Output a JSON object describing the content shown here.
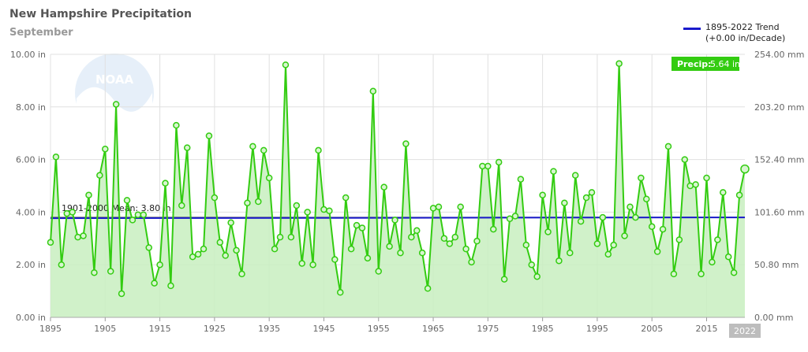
{
  "header": {
    "title": "New Hampshire Precipitation",
    "subtitle": "September"
  },
  "legend": {
    "trend_line1": "1895-2022 Trend",
    "trend_line2": "(+0.00 in/Decade)"
  },
  "badge": {
    "label": "Precip:",
    "value": "5.64 in"
  },
  "mean_label": "1901-2000 Mean: 3.80 in",
  "watermark": "NOAA",
  "colors": {
    "series": "#33cc11",
    "fill": "#c8efc0",
    "trend": "#1a1acc",
    "mean": "#555555",
    "badge": "#33cc11"
  },
  "chart_data": {
    "type": "line",
    "title": "New Hampshire Precipitation",
    "subtitle": "September",
    "x_start": 1895,
    "x_end": 2022,
    "ylim": [
      0,
      10
    ],
    "y_left_ticks": [
      "0.00 in",
      "2.00 in",
      "4.00 in",
      "6.00 in",
      "8.00 in",
      "10.00 in"
    ],
    "y_right_ticks": [
      "0.00 mm",
      "50.80 mm",
      "101.60 mm",
      "152.40 mm",
      "203.20 mm",
      "254.00 mm"
    ],
    "x_ticks": [
      "1895",
      "1905",
      "1915",
      "1925",
      "1935",
      "1945",
      "1955",
      "1965",
      "1975",
      "1985",
      "1995",
      "2005",
      "2015"
    ],
    "x_highlight": "2022",
    "mean": 3.8,
    "trend_start": 3.77,
    "trend_end": 3.8,
    "series": [
      {
        "name": "Precip",
        "values": [
          2.85,
          6.1,
          2.0,
          3.95,
          4.0,
          3.05,
          3.1,
          4.65,
          1.7,
          5.4,
          6.4,
          1.75,
          8.1,
          0.9,
          4.45,
          3.7,
          3.9,
          3.9,
          2.65,
          1.3,
          2.0,
          5.1,
          1.2,
          7.3,
          4.25,
          6.45,
          2.3,
          2.4,
          2.6,
          6.9,
          4.55,
          2.85,
          2.35,
          3.6,
          2.55,
          1.65,
          4.35,
          6.5,
          4.4,
          6.35,
          5.3,
          2.6,
          3.05,
          9.6,
          3.05,
          4.25,
          2.05,
          4.0,
          2.0,
          6.35,
          4.1,
          4.05,
          2.2,
          0.95,
          4.55,
          2.6,
          3.5,
          3.4,
          2.25,
          8.6,
          1.75,
          4.95,
          2.7,
          3.7,
          2.45,
          6.6,
          3.05,
          3.3,
          2.45,
          1.1,
          4.15,
          4.2,
          3.0,
          2.8,
          3.05,
          4.2,
          2.6,
          2.1,
          2.9,
          5.75,
          5.75,
          3.35,
          5.9,
          1.45,
          3.75,
          3.85,
          5.25,
          2.75,
          2.0,
          1.55,
          4.65,
          3.25,
          5.55,
          2.15,
          4.35,
          2.45,
          5.4,
          3.65,
          4.55,
          4.75,
          2.8,
          3.8,
          2.4,
          2.75,
          9.65,
          3.1,
          4.2,
          3.8,
          5.3,
          4.5,
          3.45,
          2.5,
          3.35,
          6.5,
          1.65,
          2.95,
          6.0,
          5.0,
          5.05,
          1.65,
          5.3,
          2.1,
          2.95,
          4.75,
          2.3,
          1.7,
          4.65,
          5.64
        ]
      }
    ]
  }
}
